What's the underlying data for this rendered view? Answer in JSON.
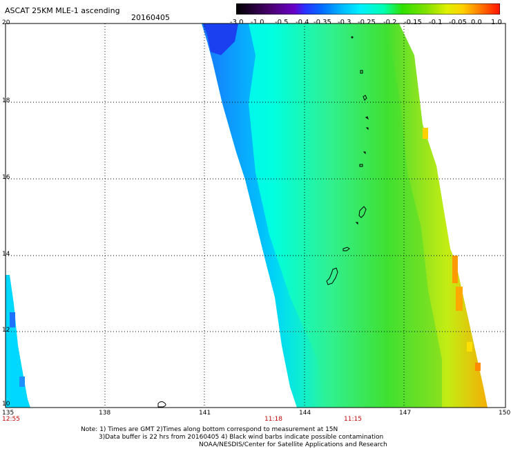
{
  "header": {
    "title": "ASCAT 25KM MLE-1 ascending",
    "date": "20160405"
  },
  "colorbar": {
    "ticks": [
      "-3.0",
      "-1.0",
      "-0.5",
      "-0.4",
      "-0.35",
      "-0.3",
      "-0.25",
      "-0.2",
      "-0.15",
      "-0.1",
      "-0.05",
      "0.0",
      "1.0"
    ],
    "colors": [
      "#000000",
      "#3a0060",
      "#5a00b0",
      "#2020ff",
      "#0080ff",
      "#00c0ff",
      "#00ffff",
      "#00ff80",
      "#40e000",
      "#a0e000",
      "#ffff00",
      "#ff8000",
      "#ff2000"
    ]
  },
  "axes": {
    "lat_labels": [
      "20",
      "18",
      "16",
      "14",
      "12",
      "10"
    ],
    "lon_labels": [
      "135",
      "138",
      "141",
      "144",
      "147",
      "150"
    ],
    "lon_range": [
      135,
      150
    ],
    "lat_range": [
      10,
      20
    ]
  },
  "times": [
    "12:55",
    "11:18",
    "11:15"
  ],
  "notes": {
    "line1": "Note: 1) Times are GMT 2)Times along bottom correspond to measurement at 15N",
    "line2": "3)Data buffer is 22 hrs from 20160405 4) Black wind barbs indicate possible contamination",
    "line3": "NOAA/NESDIS/Center for Satellite Applications and Research"
  }
}
